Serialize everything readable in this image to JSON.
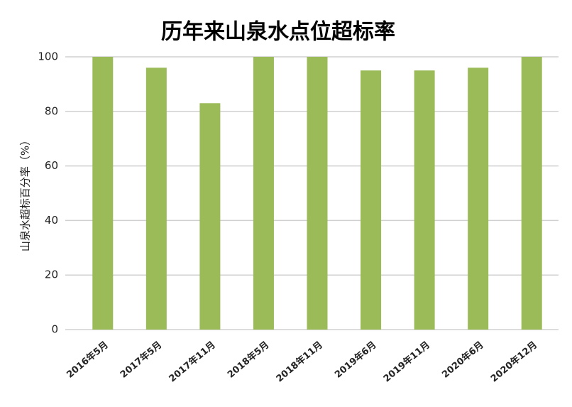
{
  "chart_data": {
    "type": "bar",
    "title": "历年来山泉水点位超标率",
    "y_label": "山泉水超标百分率（%）",
    "categories": [
      "2016年5月",
      "2017年5月",
      "2017年11月",
      "2018年5月",
      "2018年11月",
      "2019年6月",
      "2019年11月",
      "2020年6月",
      "2020年12月"
    ],
    "values": [
      100,
      96,
      83,
      100,
      100,
      95,
      95,
      96,
      100
    ],
    "color": "#9bbb59",
    "ylim": [
      0,
      100
    ],
    "yticks": [
      0,
      20,
      40,
      60,
      80,
      100
    ],
    "grid": true
  }
}
